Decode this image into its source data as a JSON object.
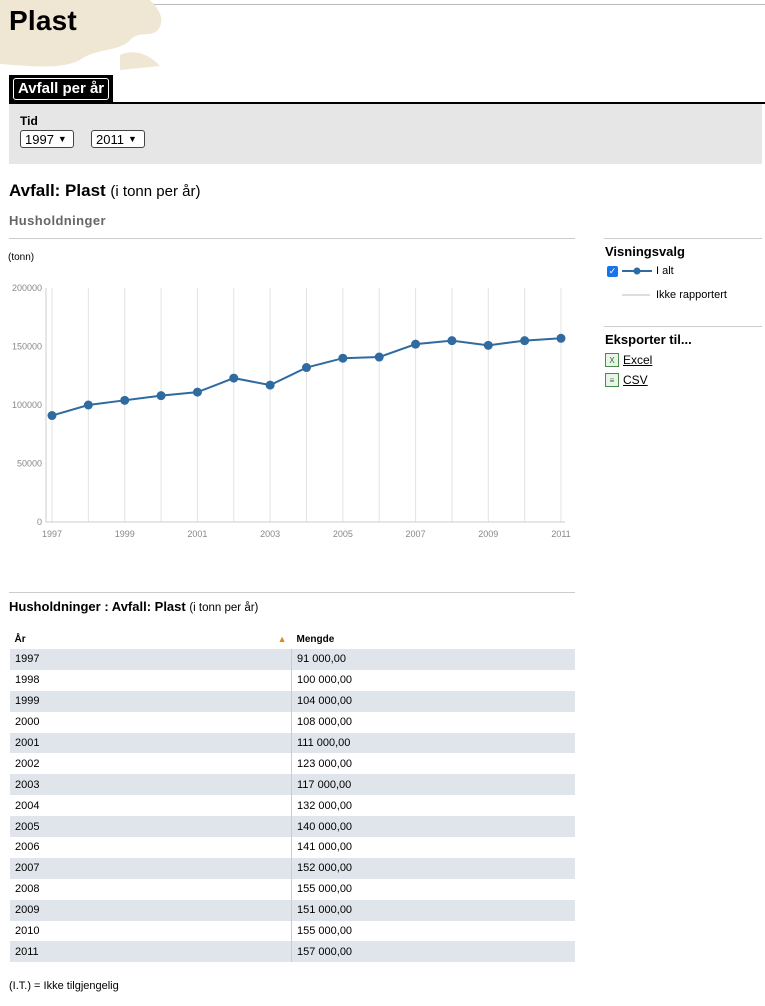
{
  "page": {
    "title": "Plast"
  },
  "tabs": [
    {
      "label": "Avfall per år"
    }
  ],
  "filter": {
    "label": "Tid",
    "from": "1997",
    "to": "2011"
  },
  "section": {
    "title": "Avfall: Plast",
    "unit": "(i tonn per år)",
    "subtitle": "Husholdninger"
  },
  "chart_data": {
    "type": "line",
    "ylabel": "(tonn)",
    "ylim": [
      0,
      200000
    ],
    "yticks": [
      "0",
      "50000",
      "100000",
      "150000",
      "200000"
    ],
    "xticks": [
      "1997",
      "1999",
      "2001",
      "2003",
      "2005",
      "2007",
      "2009",
      "2011"
    ],
    "x": [
      1997,
      1998,
      1999,
      2000,
      2001,
      2002,
      2003,
      2004,
      2005,
      2006,
      2007,
      2008,
      2009,
      2010,
      2011
    ],
    "series": [
      {
        "name": "I alt",
        "color": "#2f6aa0",
        "values": [
          91000,
          100000,
          104000,
          108000,
          111000,
          123000,
          117000,
          132000,
          140000,
          141000,
          152000,
          155000,
          151000,
          155000,
          157000
        ]
      }
    ],
    "grid": "vertical"
  },
  "sidebar": {
    "view_title": "Visningsvalg",
    "legend": [
      {
        "label": "I alt"
      },
      {
        "label": "Ikke rapportert"
      }
    ],
    "export_title": "Eksporter til...",
    "exports": [
      {
        "label": "Excel",
        "icon": "excel-icon"
      },
      {
        "label": "CSV",
        "icon": "csv-icon"
      }
    ]
  },
  "table": {
    "title": "Husholdninger : Avfall: Plast",
    "unit": "(i tonn per år)",
    "headers": [
      "År",
      "Mengde"
    ],
    "rows": [
      [
        "1997",
        "91 000,00"
      ],
      [
        "1998",
        "100 000,00"
      ],
      [
        "1999",
        "104 000,00"
      ],
      [
        "2000",
        "108 000,00"
      ],
      [
        "2001",
        "111 000,00"
      ],
      [
        "2002",
        "123 000,00"
      ],
      [
        "2003",
        "117 000,00"
      ],
      [
        "2004",
        "132 000,00"
      ],
      [
        "2005",
        "140 000,00"
      ],
      [
        "2006",
        "141 000,00"
      ],
      [
        "2007",
        "152 000,00"
      ],
      [
        "2008",
        "155 000,00"
      ],
      [
        "2009",
        "151 000,00"
      ],
      [
        "2010",
        "155 000,00"
      ],
      [
        "2011",
        "157 000,00"
      ]
    ]
  },
  "footnote": "(I.T.) = Ikke tilgjengelig"
}
